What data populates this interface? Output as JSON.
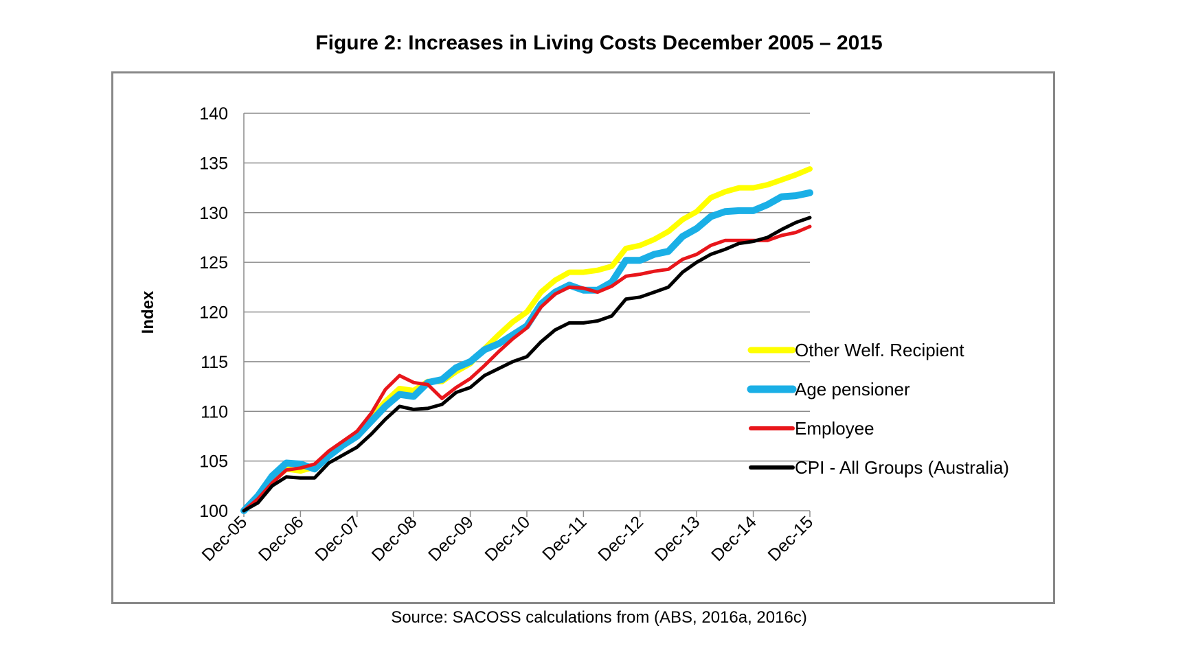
{
  "chart_data": {
    "type": "line",
    "title": "Figure 2: Increases in Living Costs December 2005 – 2015",
    "source": "Source: SACOSS calculations from (ABS, 2016a, 2016c)",
    "xlabel": "",
    "ylabel": "Index",
    "ylim": [
      100,
      140
    ],
    "yticks": [
      "100",
      "105",
      "110",
      "115",
      "120",
      "125",
      "130",
      "135",
      "140"
    ],
    "xtick_labels": [
      "Dec-05",
      "Dec-06",
      "Dec-07",
      "Dec-08",
      "Dec-09",
      "Dec-10",
      "Dec-11",
      "Dec-12",
      "Dec-13",
      "Dec-14",
      "Dec-15"
    ],
    "x_frequency": "quarterly",
    "grid": "horizontal",
    "legend_position": "right",
    "series": [
      {
        "name": "Other Welf. Recipient",
        "color": "#ffff00",
        "values": [
          100,
          101.3,
          103.0,
          104.2,
          104.0,
          104.4,
          105.6,
          106.8,
          107.8,
          109.4,
          111.0,
          112.3,
          112.1,
          113.0,
          113.0,
          114.0,
          114.8,
          116.3,
          117.7,
          119.0,
          120.0,
          122.0,
          123.2,
          124.0,
          124.0,
          124.2,
          124.6,
          126.4,
          126.7,
          127.3,
          128.1,
          129.3,
          130.1,
          131.5,
          132.1,
          132.5,
          132.5,
          132.8,
          133.3,
          133.8,
          134.4
        ]
      },
      {
        "name": "Age pensioner",
        "color": "#1aafe6",
        "values": [
          100,
          101.5,
          103.5,
          104.8,
          104.7,
          104.2,
          105.5,
          106.6,
          107.5,
          109.0,
          110.5,
          111.7,
          111.5,
          112.9,
          113.2,
          114.4,
          115.0,
          116.2,
          116.8,
          117.7,
          118.6,
          120.8,
          122.0,
          122.7,
          122.2,
          122.2,
          123.0,
          125.2,
          125.2,
          125.8,
          126.1,
          127.6,
          128.4,
          129.6,
          130.1,
          130.2,
          130.2,
          130.8,
          131.6,
          131.7,
          132.0
        ]
      },
      {
        "name": "Employee",
        "color": "#e8161b",
        "values": [
          100,
          101.2,
          102.8,
          104.1,
          104.3,
          104.7,
          106.0,
          107.0,
          108.0,
          109.8,
          112.2,
          113.6,
          112.9,
          112.7,
          111.3,
          112.4,
          113.3,
          114.6,
          116.0,
          117.3,
          118.4,
          120.5,
          121.8,
          122.5,
          122.4,
          122.0,
          122.6,
          123.6,
          123.8,
          124.1,
          124.3,
          125.3,
          125.8,
          126.7,
          127.2,
          127.2,
          127.2,
          127.2,
          127.7,
          128.0,
          128.6
        ]
      },
      {
        "name": "CPI - All Groups (Australia)",
        "color": "#000000",
        "values": [
          100,
          100.8,
          102.5,
          103.4,
          103.3,
          103.3,
          104.8,
          105.6,
          106.4,
          107.7,
          109.2,
          110.5,
          110.2,
          110.3,
          110.7,
          111.9,
          112.4,
          113.6,
          114.3,
          115.0,
          115.5,
          117.0,
          118.2,
          118.9,
          118.9,
          119.1,
          119.6,
          121.3,
          121.5,
          122.0,
          122.5,
          124.0,
          125.0,
          125.8,
          126.3,
          126.9,
          127.1,
          127.5,
          128.3,
          129.0,
          129.5
        ]
      }
    ]
  }
}
